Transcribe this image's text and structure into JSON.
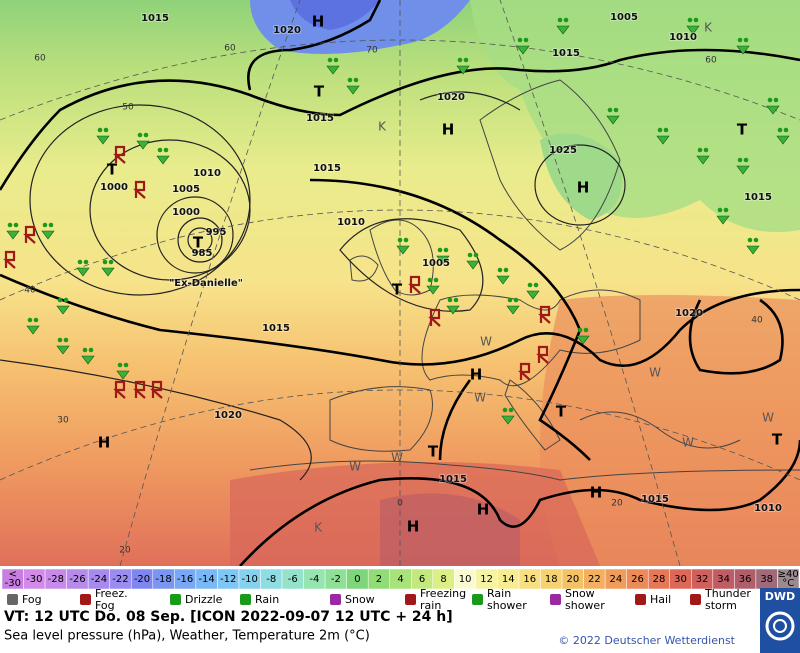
{
  "map": {
    "isobar_labels": [
      "1015",
      "1020",
      "1005",
      "1010",
      "1015",
      "1020",
      "1015",
      "1015",
      "1025",
      "1010",
      "1005",
      "1000",
      "1000",
      "995",
      "985",
      "1010",
      "1005",
      "1015",
      "1020",
      "1015",
      "1020",
      "1015",
      "1015",
      "1010"
    ],
    "temperature_labels": [
      "60",
      "60",
      "50",
      "40",
      "30",
      "20",
      "70",
      "60",
      "40",
      "20",
      "0"
    ],
    "pressure_centers": [
      "H",
      "T",
      "H",
      "H",
      "T",
      "T",
      "T",
      "H",
      "H",
      "H",
      "T",
      "T",
      "H",
      "T",
      "H",
      "T"
    ],
    "region_marks": [
      "K",
      "K",
      "W",
      "W",
      "W",
      "W",
      "K",
      "W",
      "W",
      "W"
    ],
    "storm_name": "\"Ex-Danielle\""
  },
  "color_scale": {
    "labels": [
      "-30",
      "-30",
      "-28",
      "-26",
      "-24",
      "-22",
      "-20",
      "-18",
      "-16",
      "-14",
      "-12",
      "-10",
      "-8",
      "-6",
      "-4",
      "-2",
      "0",
      "2",
      "4",
      "6",
      "8",
      "10",
      "12",
      "14",
      "16",
      "18",
      "20",
      "22",
      "24",
      "26",
      "28",
      "30",
      "32",
      "34",
      "36",
      "38",
      "≥40"
    ],
    "colors": [
      "#c77ee0",
      "#d28be8",
      "#c78ae8",
      "#b88aea",
      "#a78aee",
      "#9a8cf0",
      "#7f86f0",
      "#7a96f2",
      "#7aa7f4",
      "#7ab7f5",
      "#7ec6f4",
      "#86d2ee",
      "#8fdce2",
      "#94e2cc",
      "#96e4b0",
      "#8ee096",
      "#7fd57a",
      "#92dc78",
      "#a8e27a",
      "#c3e87e",
      "#dcee86",
      "#fafad2",
      "#f7f3a4",
      "#f8ec90",
      "#f8e080",
      "#f6d272",
      "#f4c266",
      "#f2b060",
      "#f09c5a",
      "#ec8a58",
      "#e67858",
      "#dd6858",
      "#d0605e",
      "#c05c64",
      "#b05e6a",
      "#a06a78",
      "#9a8a90"
    ],
    "low_prefix": "<",
    "unit": "°C"
  },
  "legend": [
    "Fog",
    "Freez. Fog",
    "Drizzle",
    "Rain",
    "Snow",
    "Freezing rain",
    "Rain shower",
    "Snow shower",
    "Hail",
    "Thunder storm"
  ],
  "footer": {
    "valid_time": "VT: 12 UTC Do.  08 Sep. [ICON 2022-09-07  12 UTC + 24 h]",
    "description": "Sea level pressure (hPa), Weather, Temperature 2m (°C)",
    "copyright": "© 2022 Deutscher Wetterdienst",
    "logo": "DWD"
  }
}
